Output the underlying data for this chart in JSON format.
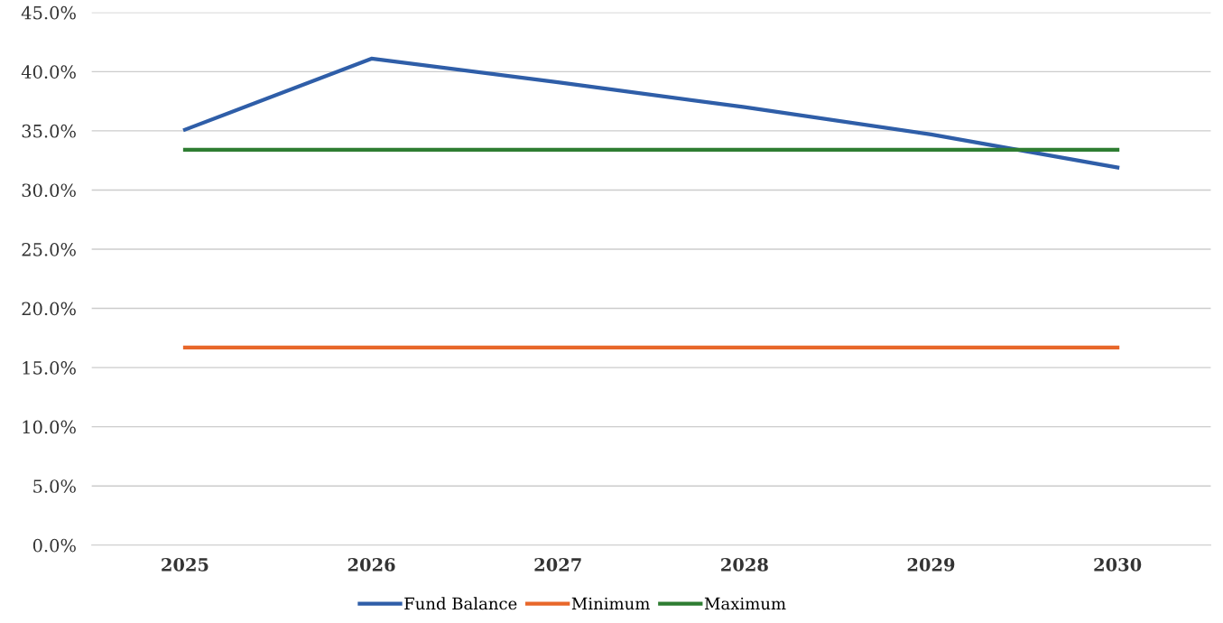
{
  "chart_data": {
    "type": "line",
    "categories": [
      "2025",
      "2026",
      "2027",
      "2028",
      "2029",
      "2030"
    ],
    "series": [
      {
        "name": "Fund Balance",
        "color": "#2f5ea8",
        "values": [
          35.1,
          41.1,
          39.1,
          37.0,
          34.7,
          31.9
        ]
      },
      {
        "name": "Minimum",
        "color": "#e8672a",
        "values": [
          16.7,
          16.7,
          16.7,
          16.7,
          16.7,
          16.7
        ]
      },
      {
        "name": "Maximum",
        "color": "#2e7d32",
        "values": [
          33.4,
          33.4,
          33.4,
          33.4,
          33.4,
          33.4
        ]
      }
    ],
    "ylim": [
      0,
      45
    ],
    "yticks": [
      {
        "value": 0,
        "label": "0.0%"
      },
      {
        "value": 5,
        "label": "5.0%"
      },
      {
        "value": 10,
        "label": "10.0%"
      },
      {
        "value": 15,
        "label": "15.0%"
      },
      {
        "value": 20,
        "label": "20.0%"
      },
      {
        "value": 25,
        "label": "25.0%"
      },
      {
        "value": 30,
        "label": "30.0%"
      },
      {
        "value": 35,
        "label": "35.0%"
      },
      {
        "value": 40,
        "label": "40.0%"
      },
      {
        "value": 45,
        "label": "45.0%"
      }
    ],
    "grid": "y",
    "legend": "bottom",
    "marker": "none",
    "line_style": "solid"
  }
}
